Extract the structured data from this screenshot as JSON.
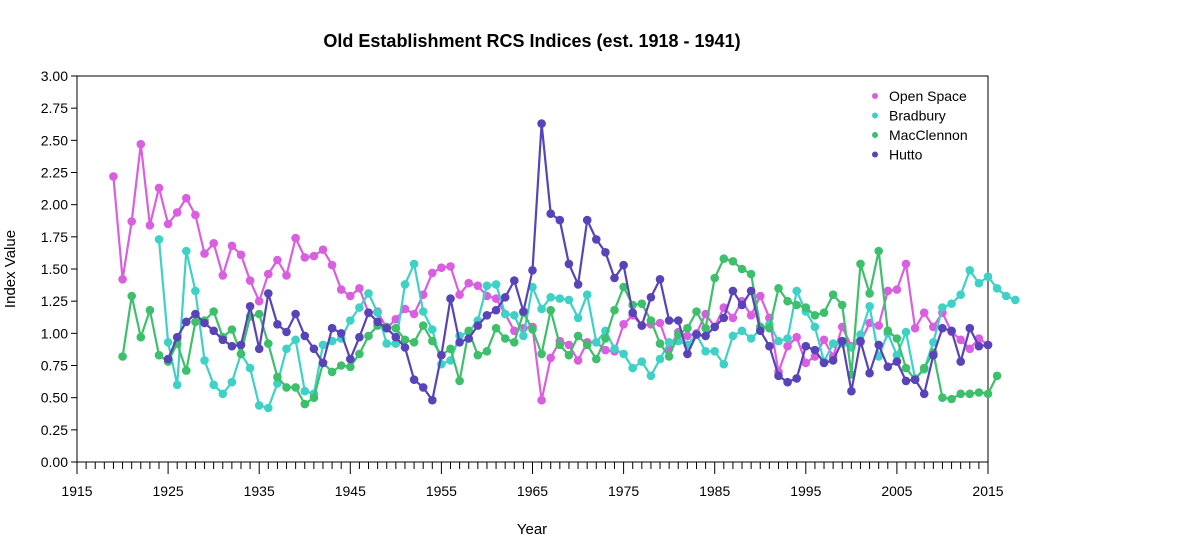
{
  "chart_data": {
    "type": "line",
    "title": "Old Establishment RCS Indices (est. 1918 - 1941)",
    "xlabel": "Year",
    "ylabel": "Index Value",
    "xlim": [
      1915,
      2015
    ],
    "ylim": [
      0,
      3
    ],
    "x_ticks": [
      "1915",
      "1925",
      "1935",
      "1945",
      "1955",
      "1965",
      "1975",
      "1985",
      "1995",
      "2005",
      "2015"
    ],
    "y_ticks": [
      "0.00",
      "0.25",
      "0.50",
      "0.75",
      "1.00",
      "1.25",
      "1.50",
      "1.75",
      "2.00",
      "2.25",
      "2.50",
      "2.75",
      "3.00"
    ],
    "grid": false,
    "legend_position": "top-right",
    "series": [
      {
        "name": "Open Space",
        "color": "#d95ee0",
        "start_year": 1919,
        "values": [
          2.22,
          1.42,
          1.87,
          2.47,
          1.84,
          2.13,
          1.85,
          1.94,
          2.05,
          1.92,
          1.62,
          1.7,
          1.45,
          1.68,
          1.61,
          1.41,
          1.25,
          1.46,
          1.57,
          1.45,
          1.74,
          1.59,
          1.6,
          1.65,
          1.53,
          1.34,
          1.29,
          1.35,
          1.16,
          1.17,
          1.04,
          1.11,
          1.19,
          1.15,
          1.3,
          1.47,
          1.51,
          1.52,
          1.3,
          1.39,
          1.37,
          1.29,
          1.27,
          1.15,
          1.02,
          1.04,
          1.05,
          0.48,
          0.81,
          0.94,
          0.91,
          0.79,
          0.93,
          0.93,
          0.87,
          0.86,
          1.07,
          1.14,
          1.06,
          1.07,
          1.08,
          0.88,
          1.01,
          0.98,
          1.0,
          1.15,
          1.05,
          1.2,
          1.12,
          1.25,
          1.14,
          1.29,
          1.12,
          0.7,
          0.9,
          0.97,
          0.77,
          0.82,
          0.95,
          0.82,
          1.05,
          0.9,
          0.93,
          1.08,
          1.06,
          1.33,
          1.34,
          1.54,
          1.04,
          1.16,
          1.05,
          1.16,
          1.01,
          0.95,
          0.88,
          0.96,
          0.91
        ]
      },
      {
        "name": "Bradbury",
        "color": "#3ed1c6",
        "start_year": 1924,
        "values": [
          1.73,
          0.93,
          0.6,
          1.64,
          1.33,
          0.79,
          0.6,
          0.53,
          0.62,
          0.84,
          0.73,
          0.44,
          0.42,
          0.61,
          0.88,
          0.95,
          0.55,
          0.53,
          0.91,
          0.94,
          0.96,
          1.1,
          1.2,
          1.31,
          1.16,
          0.92,
          0.92,
          1.38,
          1.54,
          1.17,
          1.03,
          0.76,
          0.79,
          0.98,
          1.01,
          1.1,
          1.37,
          1.38,
          1.15,
          1.14,
          0.98,
          1.36,
          1.19,
          1.28,
          1.27,
          1.26,
          1.12,
          1.3,
          0.93,
          1.02,
          0.88,
          0.84,
          0.73,
          0.78,
          0.67,
          0.8,
          0.93,
          0.94,
          0.91,
          0.99,
          0.86,
          0.86,
          0.76,
          0.98,
          1.02,
          0.96,
          1.03,
          1.07,
          0.94,
          0.96,
          1.33,
          1.17,
          1.05,
          0.78,
          0.92,
          0.92,
          0.89,
          0.99,
          1.21,
          0.82,
          1.0,
          0.83,
          1.01,
          0.65,
          0.72,
          0.93,
          1.2,
          1.23,
          1.3,
          1.49,
          1.39,
          1.44,
          1.35,
          1.29,
          1.26
        ]
      },
      {
        "name": "MacClennon",
        "color": "#3dbf6b",
        "start_year": 1920,
        "values": [
          0.82,
          1.29,
          0.97,
          1.18,
          0.83,
          0.78,
          0.92,
          0.71,
          1.09,
          1.1,
          1.17,
          0.97,
          1.03,
          0.84,
          1.13,
          1.15,
          0.92,
          0.66,
          0.58,
          0.58,
          0.45,
          0.5,
          0.77,
          0.7,
          0.75,
          0.74,
          0.84,
          0.98,
          1.06,
          1.05,
          1.04,
          0.95,
          0.93,
          1.06,
          0.94,
          0.83,
          0.88,
          0.63,
          1.02,
          0.83,
          0.86,
          1.04,
          0.96,
          0.93,
          1.16,
          1.03,
          0.84,
          1.18,
          0.91,
          0.83,
          0.98,
          0.91,
          0.8,
          0.96,
          1.18,
          1.36,
          1.22,
          1.23,
          1.1,
          0.92,
          0.82,
          0.99,
          1.04,
          1.17,
          1.04,
          1.43,
          1.58,
          1.56,
          1.5,
          1.46,
          1.05,
          1.04,
          1.35,
          1.25,
          1.22,
          1.2,
          1.14,
          1.16,
          1.3,
          1.22,
          0.68,
          1.54,
          1.31,
          1.64,
          1.02,
          0.96,
          0.73,
          0.64,
          0.73,
          0.85,
          0.5,
          0.49,
          0.53,
          0.53,
          0.54,
          0.53,
          0.67
        ]
      },
      {
        "name": "Hutto",
        "color": "#5843b8",
        "start_year": 1925,
        "values": [
          0.8,
          0.97,
          1.09,
          1.15,
          1.08,
          1.02,
          0.95,
          0.9,
          0.91,
          1.21,
          0.88,
          1.31,
          1.07,
          1.01,
          1.15,
          0.98,
          0.88,
          0.77,
          1.04,
          1.0,
          0.8,
          0.97,
          1.16,
          1.09,
          1.04,
          0.97,
          0.89,
          0.64,
          0.58,
          0.48,
          0.83,
          1.27,
          0.93,
          0.96,
          1.06,
          1.14,
          1.18,
          1.28,
          1.41,
          1.17,
          1.49,
          2.63,
          1.93,
          1.88,
          1.54,
          1.38,
          1.88,
          1.73,
          1.63,
          1.43,
          1.53,
          1.16,
          1.06,
          1.28,
          1.42,
          1.1,
          1.1,
          0.84,
          0.99,
          0.98,
          1.05,
          1.12,
          1.33,
          1.22,
          1.33,
          1.02,
          0.9,
          0.67,
          0.62,
          0.65,
          0.9,
          0.87,
          0.77,
          0.79,
          0.94,
          0.55,
          0.94,
          0.69,
          0.91,
          0.74,
          0.78,
          0.63,
          0.64,
          0.53,
          0.83,
          1.04,
          1.02,
          0.78,
          1.04,
          0.9,
          0.91
        ]
      }
    ]
  }
}
